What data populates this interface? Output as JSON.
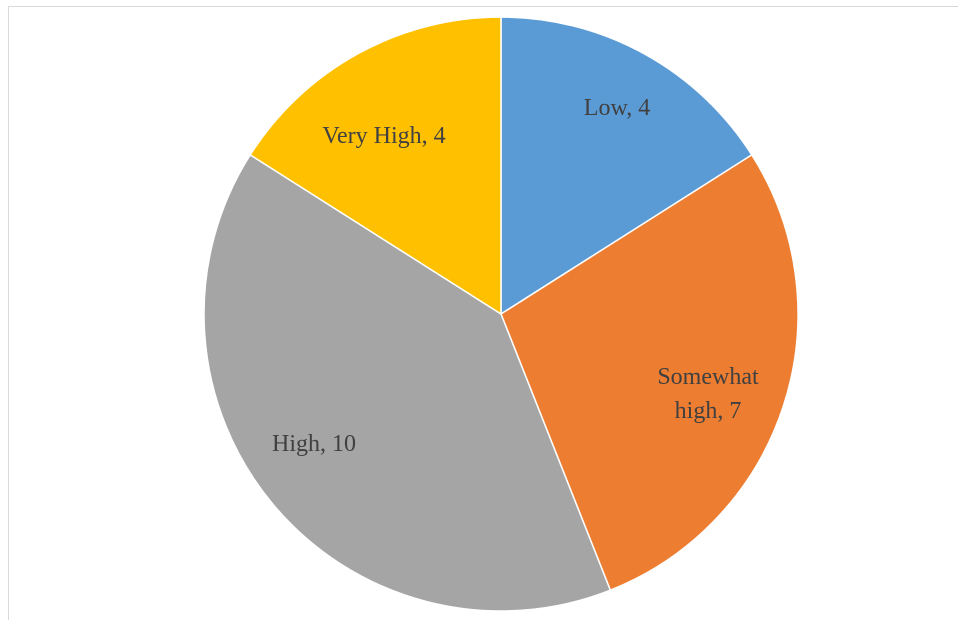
{
  "chart_data": {
    "type": "pie",
    "title": "",
    "categories": [
      "Low",
      "Somewhat high",
      "High",
      "Very High"
    ],
    "values": [
      4,
      7,
      10,
      4
    ],
    "colors": [
      "#5b9bd5",
      "#ed7d31",
      "#a5a5a5",
      "#ffc000"
    ],
    "labels": [
      [
        "Low, 4"
      ],
      [
        "Somewhat",
        "high, 7"
      ],
      [
        "High, 10"
      ],
      [
        "Very High, 4"
      ]
    ],
    "start_angle_deg": 0,
    "direction": "clockwise",
    "legend": "none"
  }
}
